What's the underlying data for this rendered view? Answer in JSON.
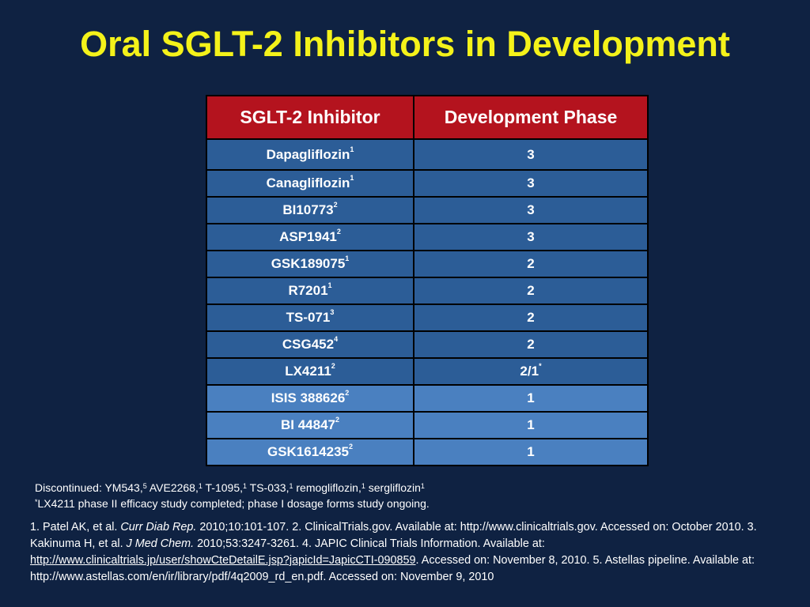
{
  "slide": {
    "title": "Oral SGLT-2 Inhibitors in Development"
  },
  "table": {
    "headers": [
      "SGLT-2 Inhibitor",
      "Development Phase"
    ],
    "rows": [
      {
        "name": "Dapagliflozin",
        "ref": "1",
        "phase": "3",
        "phase_mark": ""
      },
      {
        "name": "Canagliflozin",
        "ref": "1",
        "phase": "3",
        "phase_mark": ""
      },
      {
        "name": "BI10773",
        "ref": "2",
        "phase": "3",
        "phase_mark": ""
      },
      {
        "name": "ASP1941",
        "ref": "2",
        "phase": "3",
        "phase_mark": ""
      },
      {
        "name": "GSK189075",
        "ref": "1",
        "phase": "2",
        "phase_mark": ""
      },
      {
        "name": "R7201",
        "ref": "1",
        "phase": "2",
        "phase_mark": ""
      },
      {
        "name": "TS-071",
        "ref": "3",
        "phase": "2",
        "phase_mark": ""
      },
      {
        "name": "CSG452",
        "ref": "4",
        "phase": "2",
        "phase_mark": ""
      },
      {
        "name": "LX4211",
        "ref": "2",
        "phase": "2/1",
        "phase_mark": "*"
      },
      {
        "name": "ISIS 388626",
        "ref": "2",
        "phase": "1",
        "phase_mark": ""
      },
      {
        "name": "BI 44847",
        "ref": "2",
        "phase": "1",
        "phase_mark": ""
      },
      {
        "name": "GSK1614235",
        "ref": "2",
        "phase": "1",
        "phase_mark": ""
      }
    ]
  },
  "notes": {
    "discontinued_label": "Discontinued: ",
    "discontinued": [
      {
        "name": "YM543,",
        "ref": "5"
      },
      {
        "name": " AVE2268,",
        "ref": "1"
      },
      {
        "name": " T-1095,",
        "ref": "1"
      },
      {
        "name": " TS-033,",
        "ref": "1"
      },
      {
        "name": " remogliflozin,",
        "ref": "1"
      },
      {
        "name": " sergliflozin",
        "ref": "1"
      }
    ],
    "footnote_mark": "*",
    "footnote_text": "LX4211 phase II efficacy study completed; phase I dosage forms study ongoing."
  },
  "references": {
    "r1a": "1. Patel AK, et al. ",
    "r1_journal": "Curr Diab Rep.",
    "r1b": " 2010;10:101-107. 2. ClinicalTrials.gov. Available at: http://www.clinicaltrials.gov. Accessed on: October 2010. 3. Kakinuma H, et al. ",
    "r3_journal": "J Med Chem.",
    "r3b": " 2010;53:3247-3261. 4. JAPIC Clinical Trials Information. Available at: ",
    "r4_link": "http://www.clinicaltrials.jp/user/showCteDetailE.jsp?japicId=JapicCTI-090859",
    "r4b": ". Accessed on: November 8, 2010. 5. Astellas pipeline. Available at: http://www.astellas.com/en/ir/library/pdf/4q2009_rd_en.pdf. Accessed on: November 9, 2010"
  }
}
